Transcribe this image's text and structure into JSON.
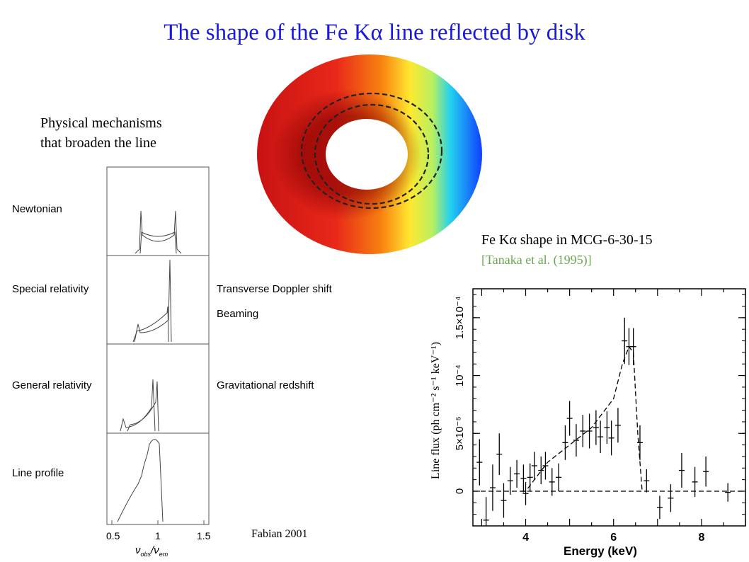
{
  "title": "The shape of the Fe Kα line reflected by disk",
  "left_caption": {
    "line1": "Physical mechanisms",
    "line2": "that broaden the line"
  },
  "fe_caption": "Fe Kα shape in MCG-6-30-15",
  "fe_citation": "[Tanaka et al. (1995)]",
  "credit": "Fabian 2001",
  "disk_colors": {
    "red": "#e8201a",
    "yellow": "#ffe830",
    "cyan": "#22d0f0",
    "blue": "#1040ff"
  },
  "chart_data": [
    {
      "type": "line",
      "panels": [
        {
          "label": "Newtonian",
          "side_label": ""
        },
        {
          "label": "Special relativity",
          "side_label": "Transverse Doppler shift",
          "side_label_2": "Beaming"
        },
        {
          "label": "General relativity",
          "side_label": "Gravitational redshift"
        },
        {
          "label": "Line profile",
          "side_label": ""
        }
      ],
      "x_ticks": [
        "0.5",
        "1",
        "1.5"
      ],
      "xlim": [
        0.5,
        1.5
      ],
      "xlabel": "ν_obs / ν_em",
      "grid": false
    },
    {
      "type": "scatter",
      "title": "",
      "xlabel": "Energy (keV)",
      "ylabel": "Line flux (ph cm⁻² s⁻¹ keV⁻¹)",
      "xlim": [
        2.8,
        9.0
      ],
      "ylim": [
        -3e-05,
        0.000175
      ],
      "x_ticks": [
        "4",
        "6",
        "8"
      ],
      "y_ticks": [
        "0",
        "5×10⁻⁵",
        "10⁻⁴",
        "1.5×10⁻⁴"
      ],
      "y_tick_values": [
        0,
        5e-05,
        0.0001,
        0.00015
      ],
      "points": [
        {
          "x": 2.95,
          "y": 2.5e-05,
          "err": 2e-05
        },
        {
          "x": 3.1,
          "y": -2.5e-05,
          "err": 2e-05
        },
        {
          "x": 3.25,
          "y": 3e-06,
          "err": 2e-05
        },
        {
          "x": 3.4,
          "y": 3.2e-05,
          "err": 1.8e-05
        },
        {
          "x": 3.5,
          "y": -8e-06,
          "err": 1.5e-05
        },
        {
          "x": 3.65,
          "y": 9e-06,
          "err": 1.2e-05
        },
        {
          "x": 3.8,
          "y": 1.5e-05,
          "err": 1.2e-05
        },
        {
          "x": 3.95,
          "y": 1.1e-05,
          "err": 1.2e-05
        },
        {
          "x": 4.0,
          "y": -2e-06,
          "err": 1e-05
        },
        {
          "x": 4.1,
          "y": 1.2e-05,
          "err": 1.2e-05
        },
        {
          "x": 4.2,
          "y": 2.2e-05,
          "err": 1.2e-05
        },
        {
          "x": 4.35,
          "y": 1.8e-05,
          "err": 1.2e-05
        },
        {
          "x": 4.45,
          "y": 2.2e-05,
          "err": 1.2e-05
        },
        {
          "x": 4.6,
          "y": 8e-06,
          "err": 1.2e-05
        },
        {
          "x": 4.75,
          "y": 1.2e-05,
          "err": 1.2e-05
        },
        {
          "x": 4.9,
          "y": 4.2e-05,
          "err": 1.5e-05
        },
        {
          "x": 5.0,
          "y": 6.3e-05,
          "err": 1.5e-05
        },
        {
          "x": 5.15,
          "y": 4.4e-05,
          "err": 1.4e-05
        },
        {
          "x": 5.3,
          "y": 5.2e-05,
          "err": 1.4e-05
        },
        {
          "x": 5.45,
          "y": 5.2e-05,
          "err": 1.5e-05
        },
        {
          "x": 5.6,
          "y": 5.5e-05,
          "err": 1.5e-05
        },
        {
          "x": 5.7,
          "y": 4.7e-05,
          "err": 1.4e-05
        },
        {
          "x": 5.85,
          "y": 5.5e-05,
          "err": 1.4e-05
        },
        {
          "x": 5.95,
          "y": 4.6e-05,
          "err": 1.5e-05
        },
        {
          "x": 6.1,
          "y": 5.7e-05,
          "err": 1.5e-05
        },
        {
          "x": 6.25,
          "y": 0.00013,
          "err": 2e-05
        },
        {
          "x": 6.35,
          "y": 0.000125,
          "err": 1.6e-05
        },
        {
          "x": 6.45,
          "y": 0.000125,
          "err": 1.6e-05
        },
        {
          "x": 6.6,
          "y": 4.2e-05,
          "err": 1.5e-05
        },
        {
          "x": 6.75,
          "y": 9e-06,
          "err": 1e-05
        },
        {
          "x": 7.05,
          "y": -1.4e-05,
          "err": 1e-05
        },
        {
          "x": 7.3,
          "y": -6e-06,
          "err": 1.2e-05
        },
        {
          "x": 7.55,
          "y": 1.8e-05,
          "err": 1.5e-05
        },
        {
          "x": 7.85,
          "y": 8e-06,
          "err": 1.3e-05
        },
        {
          "x": 8.1,
          "y": 1.7e-05,
          "err": 1.3e-05
        },
        {
          "x": 8.6,
          "y": -1e-06,
          "err": 8e-06
        }
      ],
      "model": [
        [
          3.9,
          0
        ],
        [
          4.0,
          0
        ],
        [
          4.5,
          2.5e-05
        ],
        [
          5.0,
          4e-05
        ],
        [
          5.5,
          5.5e-05
        ],
        [
          6.0,
          8e-05
        ],
        [
          6.2,
          0.00011
        ],
        [
          6.35,
          0.000125
        ],
        [
          6.45,
          0.00012
        ],
        [
          6.55,
          5e-05
        ],
        [
          6.65,
          0
        ]
      ],
      "zero_line": 0
    }
  ]
}
